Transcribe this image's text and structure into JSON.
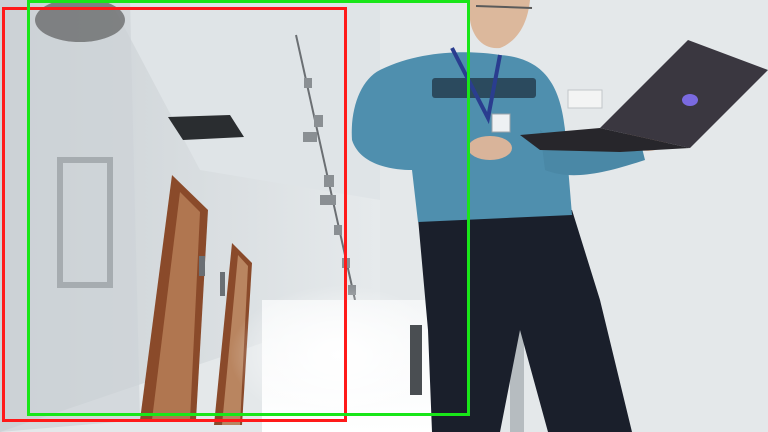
{
  "scene": {
    "description_colors": {
      "wall": "#e9ecee",
      "ceiling": "#dde2e5",
      "door_frame": "#8a4a2a",
      "sweater": "#4f8fae",
      "trousers": "#1a1f2b",
      "laptop": "#3a3740"
    }
  },
  "boxes": [
    {
      "name": "red-box",
      "color": "#ff1a1a"
    },
    {
      "name": "green-box",
      "color": "#19e619"
    }
  ]
}
